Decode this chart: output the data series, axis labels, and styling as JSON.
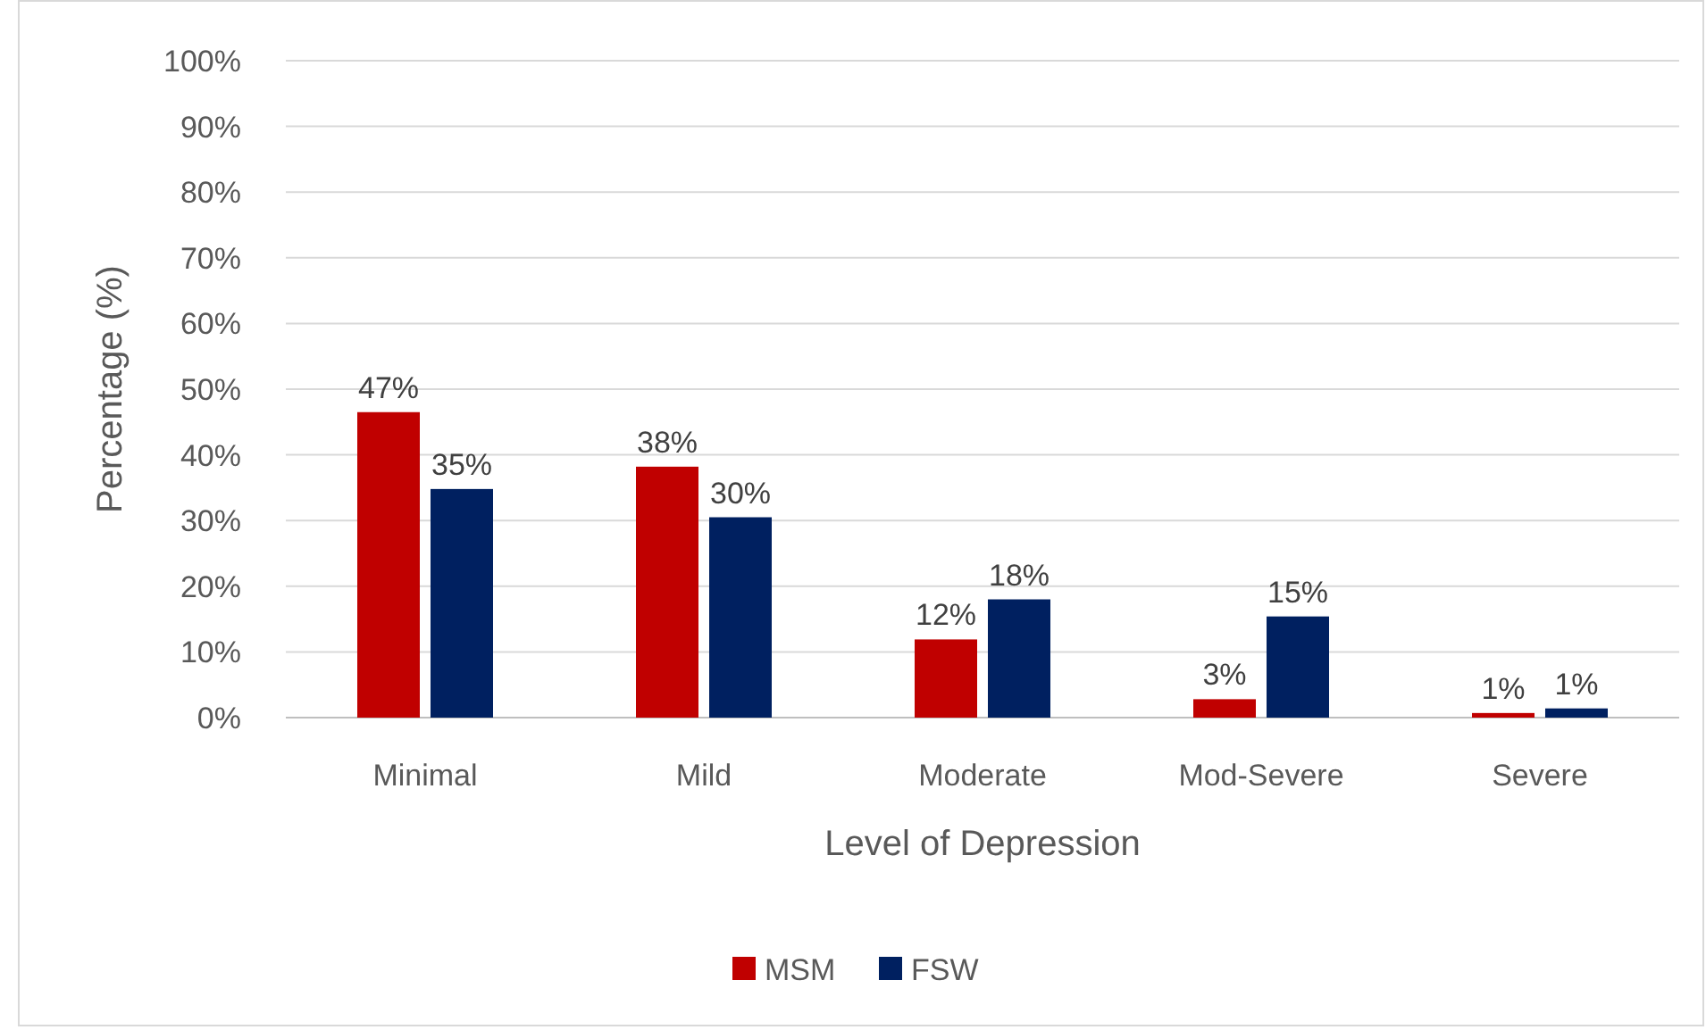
{
  "chart_data": {
    "type": "bar",
    "xlabel": "Level of  Depression",
    "ylabel": "Percentage (%)",
    "categories": [
      "Minimal",
      "Mild",
      "Moderate",
      "Mod-Severe",
      "Severe"
    ],
    "series": [
      {
        "name": "MSM",
        "color": "#c00000",
        "values": [
          46.5,
          38.2,
          11.9,
          2.8,
          0.7
        ],
        "value_labels": [
          "47%",
          "38%",
          "12%",
          "3%",
          "1%"
        ]
      },
      {
        "name": "FSW",
        "color": "#002060",
        "values": [
          34.8,
          30.5,
          18,
          15.4,
          1.4
        ],
        "value_labels": [
          "35%",
          "30%",
          "18%",
          "15%",
          "1%"
        ]
      }
    ],
    "ylim": [
      0,
      100
    ],
    "yticks": [
      {
        "value": 0,
        "label": "0%"
      },
      {
        "value": 10,
        "label": "10%"
      },
      {
        "value": 20,
        "label": "20%"
      },
      {
        "value": 30,
        "label": "30%"
      },
      {
        "value": 40,
        "label": "40%"
      },
      {
        "value": 50,
        "label": "50%"
      },
      {
        "value": 60,
        "label": "60%"
      },
      {
        "value": 70,
        "label": "70%"
      },
      {
        "value": 80,
        "label": "80%"
      },
      {
        "value": 90,
        "label": "90%"
      },
      {
        "value": 100,
        "label": "100%"
      }
    ],
    "grid": "y",
    "legend": "bottom"
  }
}
